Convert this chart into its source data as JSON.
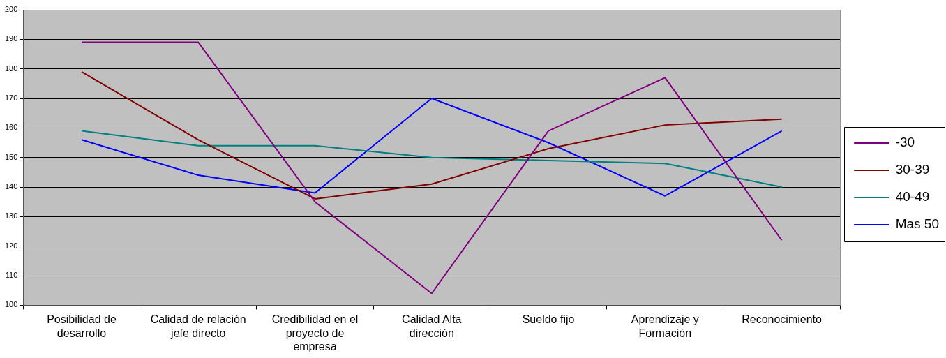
{
  "chart_data": {
    "type": "line",
    "categories": [
      "Posibilidad de desarrollo",
      "Calidad de relación jefe directo",
      "Credibilidad en el proyecto de empresa",
      "Calidad Alta dirección",
      "Sueldo fijo",
      "Aprendizaje y Formación",
      "Reconocimiento"
    ],
    "series": [
      {
        "name": "-30",
        "color": "#800080",
        "values": [
          189,
          189,
          135,
          104,
          159,
          177,
          122
        ]
      },
      {
        "name": "30-39",
        "color": "#800000",
        "values": [
          179,
          156,
          136,
          141,
          153,
          161,
          163
        ]
      },
      {
        "name": "40-49",
        "color": "#008080",
        "values": [
          159,
          154,
          154,
          150,
          149,
          148,
          140
        ]
      },
      {
        "name": "Mas 50",
        "color": "#0000ff",
        "values": [
          156,
          144,
          138,
          170,
          155,
          137,
          159
        ]
      }
    ],
    "ylim": [
      100,
      200
    ],
    "yticks": [
      100,
      110,
      120,
      130,
      140,
      150,
      160,
      170,
      180,
      190,
      200
    ],
    "grid": "y",
    "legend": "right",
    "marker": "none",
    "line_style": "solid"
  }
}
